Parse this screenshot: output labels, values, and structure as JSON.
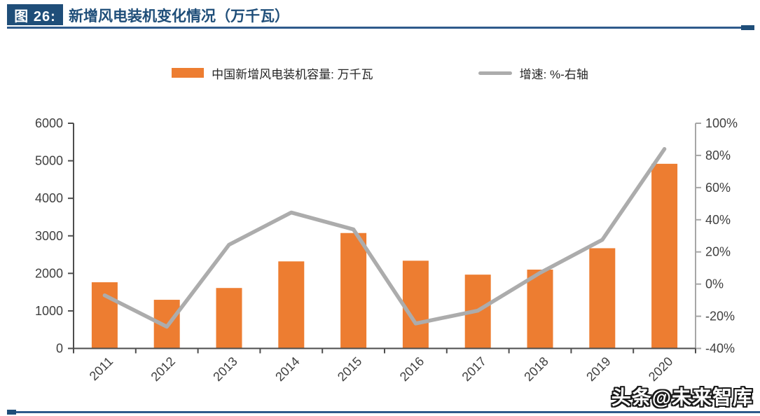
{
  "header": {
    "figure_label": "图 26:",
    "title": "新增风电装机变化情况（万千瓦）"
  },
  "legend": {
    "bar_label": "中国新增风电装机容量: 万千瓦",
    "line_label": "增速: %-右轴"
  },
  "watermark": "头条@未来智库",
  "colors": {
    "bar": "#ED7D31",
    "line": "#ACACAC",
    "navy": "#1F4E79",
    "rule": "#2E5A8C",
    "axis_text": "#404040",
    "axis_dark": "#4D4D4D",
    "axis_gray": "#A6A6A6"
  },
  "chart_data": {
    "type": "bar",
    "title": "新增风电装机变化情况（万千瓦）",
    "categories": [
      "2011",
      "2012",
      "2013",
      "2014",
      "2015",
      "2016",
      "2017",
      "2018",
      "2019",
      "2020"
    ],
    "series": [
      {
        "name": "中国新增风电装机容量: 万千瓦",
        "type": "bar",
        "axis": "left",
        "values": [
          1763,
          1296,
          1610,
          2319,
          3075,
          2337,
          1966,
          2100,
          2670,
          4920
        ]
      },
      {
        "name": "增速: %-右轴",
        "type": "line",
        "axis": "right",
        "values": [
          -7,
          -26.5,
          24.5,
          44.5,
          34,
          -24.5,
          -16.5,
          7,
          27.5,
          84
        ]
      }
    ],
    "left_axis": {
      "min": 0,
      "max": 6000,
      "ticks": [
        0,
        1000,
        2000,
        3000,
        4000,
        5000,
        6000
      ],
      "suffix": ""
    },
    "right_axis": {
      "min": -40,
      "max": 100,
      "ticks": [
        -40,
        -20,
        0,
        20,
        40,
        60,
        80,
        100
      ],
      "suffix": "%"
    },
    "grid": false,
    "legend_position": "top",
    "x_labels_rotated_deg": -45
  }
}
